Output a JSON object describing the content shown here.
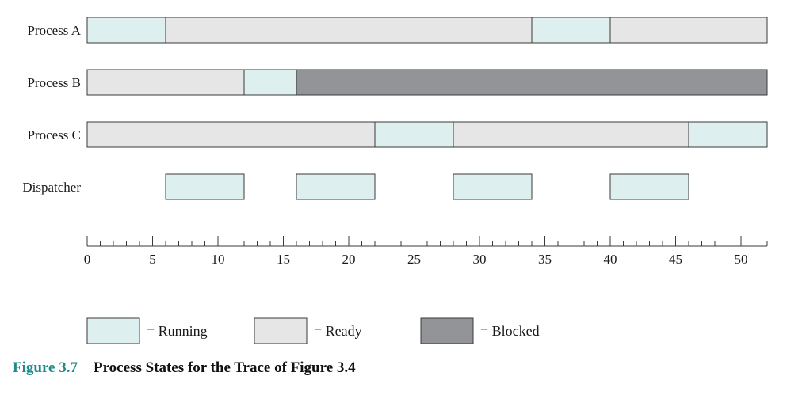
{
  "rows": [
    {
      "label": "Process A",
      "segments": [
        {
          "start": 0,
          "end": 6,
          "state": "running"
        },
        {
          "start": 6,
          "end": 34,
          "state": "ready"
        },
        {
          "start": 34,
          "end": 40,
          "state": "running"
        },
        {
          "start": 40,
          "end": 52,
          "state": "ready"
        }
      ]
    },
    {
      "label": "Process B",
      "segments": [
        {
          "start": 0,
          "end": 12,
          "state": "ready"
        },
        {
          "start": 12,
          "end": 16,
          "state": "running"
        },
        {
          "start": 16,
          "end": 52,
          "state": "blocked"
        }
      ]
    },
    {
      "label": "Process C",
      "segments": [
        {
          "start": 0,
          "end": 22,
          "state": "ready"
        },
        {
          "start": 22,
          "end": 28,
          "state": "running"
        },
        {
          "start": 28,
          "end": 46,
          "state": "ready"
        },
        {
          "start": 46,
          "end": 52,
          "state": "running"
        }
      ]
    },
    {
      "label": "Dispatcher",
      "segments": [
        {
          "start": 6,
          "end": 12,
          "state": "running"
        },
        {
          "start": 16,
          "end": 22,
          "state": "running"
        },
        {
          "start": 28,
          "end": 34,
          "state": "running"
        },
        {
          "start": 40,
          "end": 46,
          "state": "running"
        }
      ]
    }
  ],
  "axis": {
    "min": 0,
    "max": 52,
    "major_ticks": [
      "0",
      "5",
      "10",
      "15",
      "20",
      "25",
      "30",
      "35",
      "40",
      "45",
      "50"
    ]
  },
  "legend": [
    {
      "state": "running",
      "text": "= Running"
    },
    {
      "state": "ready",
      "text": "= Ready"
    },
    {
      "state": "blocked",
      "text": "= Blocked"
    }
  ],
  "colors": {
    "running": "#deefef",
    "ready": "#e6e6e7",
    "blocked": "#929497",
    "caption_accent": "#1f8a8a"
  },
  "caption": {
    "number": "Figure 3.7",
    "title": "Process States for the Trace of Figure 3.4"
  }
}
